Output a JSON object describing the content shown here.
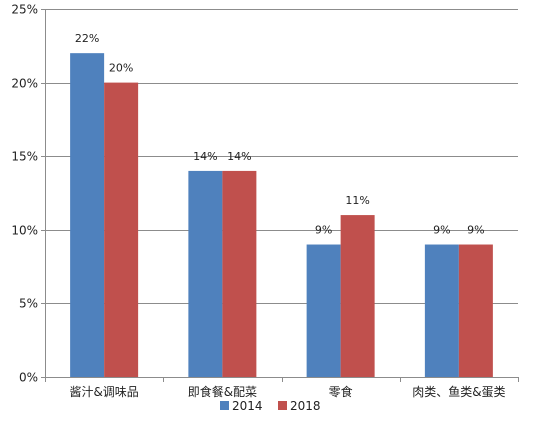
{
  "chart_data": {
    "type": "bar",
    "title": "",
    "xlabel": "",
    "ylabel": "",
    "categories": [
      "酱汁&调味品",
      "即食餐&配菜",
      "零食",
      "肉类、鱼类&蛋类"
    ],
    "series": [
      {
        "name": "2014",
        "values": [
          22,
          14,
          9,
          9
        ],
        "color": "#4f81bd"
      },
      {
        "name": "2018",
        "values": [
          20,
          14,
          11,
          9
        ],
        "color": "#c0504d"
      }
    ],
    "ylim": [
      0,
      25
    ],
    "yticks": [
      0,
      5,
      10,
      15,
      20,
      25
    ],
    "value_suffix": "%",
    "grid": true,
    "legend_position": "bottom"
  }
}
